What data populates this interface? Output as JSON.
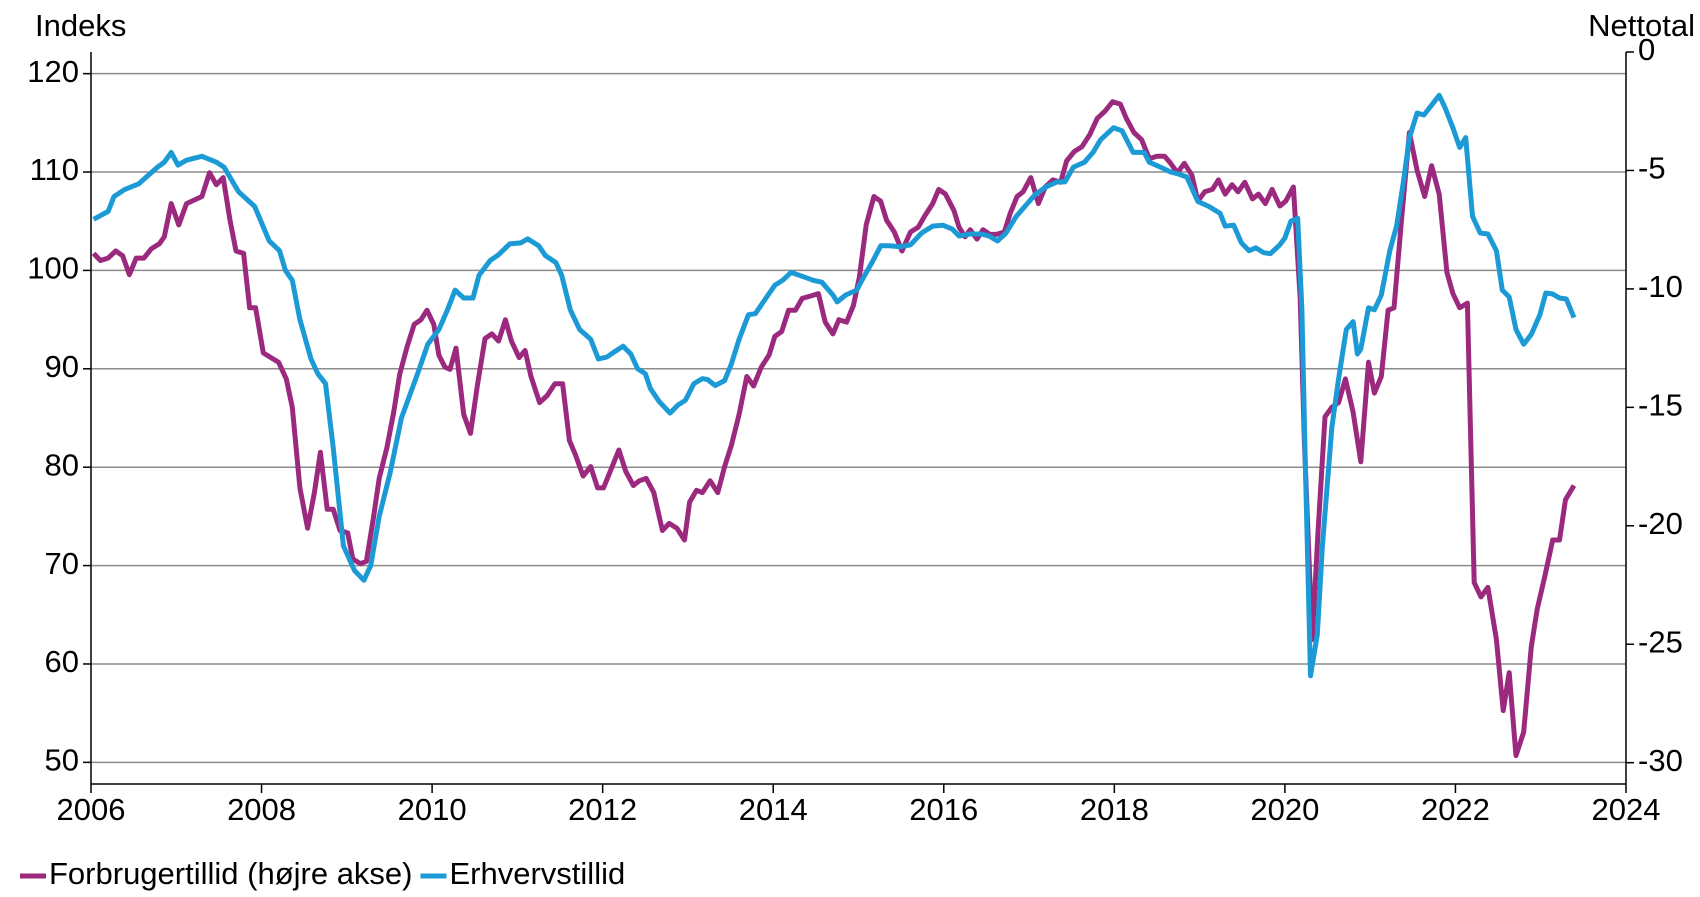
{
  "chart_data": {
    "type": "line",
    "y_label": "Indeks",
    "y2_label": "Nettotal",
    "xlim": [
      2006,
      2024
    ],
    "xticks": [
      2006,
      2008,
      2010,
      2012,
      2014,
      2016,
      2018,
      2020,
      2022,
      2024
    ],
    "ylim": [
      47.8,
      122.2
    ],
    "yticks": [
      50,
      60,
      70,
      80,
      90,
      100,
      110,
      120
    ],
    "y2lim": [
      -30.9,
      0
    ],
    "y2ticks": [
      0,
      -5,
      -10,
      -15,
      -20,
      -25,
      -30
    ],
    "grid": true,
    "legend": "bottom",
    "series": [
      {
        "name": "Forbrugertillid (højre akse)",
        "color": "#9b2a7f",
        "axis": "y2",
        "x": [
          2006.03,
          2006.11,
          2006.2,
          2006.29,
          2006.37,
          2006.45,
          2006.53,
          2006.62,
          2006.71,
          2006.8,
          2006.86,
          2006.94,
          2007.03,
          2007.12,
          2007.3,
          2007.39,
          2007.47,
          2007.55,
          2007.63,
          2007.7,
          2007.79,
          2007.86,
          2007.93,
          2008.02,
          2008.11,
          2008.2,
          2008.29,
          2008.36,
          2008.45,
          2008.54,
          2008.62,
          2008.69,
          2008.77,
          2008.84,
          2008.92,
          2009.01,
          2009.07,
          2009.16,
          2009.23,
          2009.31,
          2009.38,
          2009.47,
          2009.55,
          2009.62,
          2009.71,
          2009.79,
          2009.87,
          2009.94,
          2010.02,
          2010.08,
          2010.15,
          2010.21,
          2010.28,
          2010.37,
          2010.45,
          2010.53,
          2010.62,
          2010.7,
          2010.78,
          2010.86,
          2010.93,
          2011.02,
          2011.09,
          2011.16,
          2011.26,
          2011.35,
          2011.44,
          2011.53,
          2011.61,
          2011.68,
          2011.77,
          2011.86,
          2011.94,
          2012.01,
          2012.1,
          2012.19,
          2012.27,
          2012.36,
          2012.43,
          2012.51,
          2012.6,
          2012.7,
          2012.78,
          2012.87,
          2012.96,
          2013.02,
          2013.1,
          2013.17,
          2013.26,
          2013.35,
          2013.43,
          2013.51,
          2013.6,
          2013.69,
          2013.77,
          2013.86,
          2013.95,
          2014.02,
          2014.1,
          2014.18,
          2014.26,
          2014.34,
          2014.44,
          2014.53,
          2014.61,
          2014.7,
          2014.77,
          2014.86,
          2014.94,
          2015.01,
          2015.09,
          2015.18,
          2015.26,
          2015.33,
          2015.42,
          2015.51,
          2015.61,
          2015.7,
          2015.78,
          2015.87,
          2015.94,
          2016.02,
          2016.12,
          2016.18,
          2016.25,
          2016.31,
          2016.39,
          2016.46,
          2016.54,
          2016.62,
          2016.71,
          2016.78,
          2016.86,
          2016.93,
          2017.02,
          2017.11,
          2017.19,
          2017.28,
          2017.37,
          2017.44,
          2017.53,
          2017.62,
          2017.71,
          2017.8,
          2017.89,
          2017.98,
          2018.07,
          2018.14,
          2018.23,
          2018.32,
          2018.41,
          2018.5,
          2018.59,
          2018.66,
          2018.74,
          2018.82,
          2018.91,
          2018.98,
          2019.06,
          2019.15,
          2019.22,
          2019.3,
          2019.38,
          2019.45,
          2019.53,
          2019.62,
          2019.69,
          2019.77,
          2019.85,
          2019.94,
          2020.01,
          2020.1,
          2020.18,
          2020.23,
          2020.32,
          2020.39,
          2020.47,
          2020.55,
          2020.63,
          2020.71,
          2020.8,
          2020.89,
          2020.98,
          2021.05,
          2021.13,
          2021.21,
          2021.28,
          2021.37,
          2021.46,
          2021.55,
          2021.64,
          2021.72,
          2021.81,
          2021.9,
          2021.97,
          2022.05,
          2022.14,
          2022.22,
          2022.3,
          2022.38,
          2022.48,
          2022.56,
          2022.63,
          2022.71,
          2022.8,
          2022.89,
          2022.96,
          2023.05,
          2023.14,
          2023.22,
          2023.29,
          2023.39
        ],
        "values": [
          -8.5,
          -8.8,
          -8.7,
          -8.4,
          -8.6,
          -9.4,
          -8.7,
          -8.7,
          -8.3,
          -8.1,
          -7.8,
          -6.4,
          -7.3,
          -6.4,
          -6.1,
          -5.1,
          -5.6,
          -5.3,
          -7.1,
          -8.4,
          -8.5,
          -10.8,
          -10.8,
          -12.7,
          -12.9,
          -13.1,
          -13.8,
          -15.0,
          -18.4,
          -20.1,
          -18.6,
          -16.9,
          -19.3,
          -19.3,
          -20.2,
          -20.3,
          -21.4,
          -21.6,
          -21.5,
          -19.7,
          -18.0,
          -16.7,
          -15.2,
          -13.6,
          -12.4,
          -11.5,
          -11.3,
          -10.9,
          -11.5,
          -12.8,
          -13.3,
          -13.4,
          -12.5,
          -15.3,
          -16.1,
          -14.1,
          -12.1,
          -11.9,
          -12.2,
          -11.3,
          -12.2,
          -12.9,
          -12.6,
          -13.7,
          -14.8,
          -14.5,
          -14.0,
          -14.0,
          -16.4,
          -17.0,
          -17.9,
          -17.5,
          -18.4,
          -18.4,
          -17.6,
          -16.8,
          -17.7,
          -18.3,
          -18.1,
          -18.0,
          -18.6,
          -20.2,
          -19.9,
          -20.1,
          -20.6,
          -19.0,
          -18.5,
          -18.6,
          -18.1,
          -18.6,
          -17.5,
          -16.6,
          -15.3,
          -13.7,
          -14.1,
          -13.3,
          -12.8,
          -12.0,
          -11.8,
          -10.9,
          -10.9,
          -10.4,
          -10.3,
          -10.2,
          -11.4,
          -11.9,
          -11.3,
          -11.4,
          -10.7,
          -9.5,
          -7.3,
          -6.1,
          -6.3,
          -7.1,
          -7.6,
          -8.4,
          -7.6,
          -7.4,
          -6.9,
          -6.4,
          -5.8,
          -6.0,
          -6.7,
          -7.4,
          -7.8,
          -7.5,
          -7.9,
          -7.5,
          -7.7,
          -7.7,
          -7.6,
          -6.8,
          -6.1,
          -5.9,
          -5.3,
          -6.4,
          -5.7,
          -5.4,
          -5.5,
          -4.6,
          -4.2,
          -4.0,
          -3.5,
          -2.8,
          -2.5,
          -2.1,
          -2.2,
          -2.8,
          -3.4,
          -3.7,
          -4.5,
          -4.4,
          -4.4,
          -4.7,
          -5.1,
          -4.7,
          -5.2,
          -6.3,
          -5.9,
          -5.8,
          -5.4,
          -6.0,
          -5.6,
          -5.9,
          -5.5,
          -6.2,
          -6.0,
          -6.4,
          -5.8,
          -6.5,
          -6.3,
          -5.7,
          -10.4,
          -16.6,
          -24.8,
          -20.2,
          -15.4,
          -15.0,
          -14.8,
          -13.8,
          -15.2,
          -17.3,
          -13.1,
          -14.4,
          -13.7,
          -10.9,
          -10.8,
          -7.0,
          -3.4,
          -5.0,
          -6.1,
          -4.8,
          -6.0,
          -9.3,
          -10.2,
          -10.8,
          -10.6,
          -22.4,
          -23.0,
          -22.6,
          -24.8,
          -27.8,
          -26.2,
          -29.7,
          -28.7,
          -25.1,
          -23.5,
          -22.1,
          -20.6,
          -20.6,
          -18.9,
          -18.3
        ]
      },
      {
        "name": "Erhvervstillid",
        "color": "#1b9ad6",
        "axis": "y",
        "x": [
          2006.03,
          2006.2,
          2006.27,
          2006.39,
          2006.56,
          2006.78,
          2006.86,
          2006.94,
          2007.02,
          2007.12,
          2007.3,
          2007.47,
          2007.56,
          2007.73,
          2007.92,
          2008.09,
          2008.21,
          2008.28,
          2008.36,
          2008.45,
          2008.58,
          2008.66,
          2008.75,
          2008.84,
          2008.96,
          2009.09,
          2009.2,
          2009.28,
          2009.38,
          2009.51,
          2009.64,
          2009.83,
          2009.95,
          2010.08,
          2010.18,
          2010.27,
          2010.37,
          2010.48,
          2010.55,
          2010.68,
          2010.78,
          2010.91,
          2011.04,
          2011.12,
          2011.25,
          2011.33,
          2011.45,
          2011.52,
          2011.62,
          2011.73,
          2011.86,
          2011.95,
          2012.05,
          2012.15,
          2012.24,
          2012.33,
          2012.41,
          2012.5,
          2012.56,
          2012.66,
          2012.79,
          2012.88,
          2012.97,
          2013.07,
          2013.17,
          2013.23,
          2013.32,
          2013.43,
          2013.51,
          2013.6,
          2013.71,
          2013.79,
          2013.9,
          2014.02,
          2014.11,
          2014.21,
          2014.34,
          2014.47,
          2014.57,
          2014.7,
          2014.75,
          2014.85,
          2014.98,
          2015.04,
          2015.17,
          2015.26,
          2015.36,
          2015.49,
          2015.61,
          2015.74,
          2015.87,
          2015.99,
          2016.1,
          2016.18,
          2016.31,
          2016.44,
          2016.53,
          2016.63,
          2016.73,
          2016.85,
          2016.95,
          2017.07,
          2017.2,
          2017.33,
          2017.42,
          2017.52,
          2017.65,
          2017.75,
          2017.84,
          2017.99,
          2018.09,
          2018.22,
          2018.35,
          2018.41,
          2018.54,
          2018.66,
          2018.75,
          2018.85,
          2018.98,
          2019.11,
          2019.24,
          2019.3,
          2019.4,
          2019.49,
          2019.58,
          2019.66,
          2019.75,
          2019.83,
          2019.94,
          2020.0,
          2020.07,
          2020.15,
          2020.2,
          2020.24,
          2020.3,
          2020.38,
          2020.44,
          2020.55,
          2020.63,
          2020.72,
          2020.8,
          2020.85,
          2020.89,
          2020.98,
          2021.05,
          2021.13,
          2021.23,
          2021.31,
          2021.39,
          2021.46,
          2021.55,
          2021.63,
          2021.72,
          2021.81,
          2021.88,
          2021.97,
          2022.05,
          2022.12,
          2022.2,
          2022.29,
          2022.38,
          2022.48,
          2022.55,
          2022.63,
          2022.71,
          2022.8,
          2022.89,
          2022.99,
          2023.06,
          2023.14,
          2023.22,
          2023.3,
          2023.39
        ],
        "values": [
          105.2,
          106,
          107.5,
          108.2,
          108.8,
          110.5,
          111,
          112,
          110.7,
          111.2,
          111.6,
          111,
          110.5,
          108,
          106.5,
          103,
          102,
          100,
          99,
          95,
          91,
          89.5,
          88.5,
          82,
          72,
          69.5,
          68.5,
          70,
          75,
          79.5,
          85,
          89.5,
          92.5,
          94,
          96,
          98,
          97.2,
          97.2,
          99.5,
          101,
          101.6,
          102.7,
          102.8,
          103.2,
          102.5,
          101.5,
          100.8,
          99.5,
          96,
          94,
          93,
          91,
          91.2,
          91.8,
          92.3,
          91.5,
          90,
          89.5,
          88,
          86.7,
          85.5,
          86.3,
          86.8,
          88.5,
          89,
          88.9,
          88.3,
          88.8,
          90.5,
          93,
          95.5,
          95.6,
          97,
          98.5,
          99,
          99.8,
          99.4,
          99,
          98.8,
          97.5,
          96.8,
          97.5,
          98,
          99,
          101,
          102.5,
          102.5,
          102.4,
          102.6,
          103.8,
          104.5,
          104.6,
          104.2,
          103.5,
          103.7,
          103.7,
          103.5,
          103,
          103.8,
          105.5,
          106.5,
          107.7,
          108.5,
          109,
          109,
          110.5,
          111,
          112,
          113.3,
          114.5,
          114.2,
          112,
          112,
          111,
          110.5,
          110,
          109.8,
          109.5,
          107,
          106.5,
          105.8,
          104.5,
          104.6,
          102.8,
          102,
          102.3,
          101.8,
          101.7,
          102.6,
          103.3,
          105,
          105.3,
          96,
          80,
          58.8,
          63,
          72,
          84,
          89,
          94,
          94.8,
          91.5,
          92,
          96.2,
          96,
          97.5,
          102,
          104.5,
          109,
          113.5,
          116,
          115.8,
          116.8,
          117.8,
          116.5,
          114.5,
          112.5,
          113.5,
          105.5,
          103.8,
          103.7,
          102,
          98,
          97.3,
          94,
          92.5,
          93.5,
          95.5,
          97.7,
          97.6,
          97.2,
          97.1,
          95.2
        ]
      }
    ]
  }
}
